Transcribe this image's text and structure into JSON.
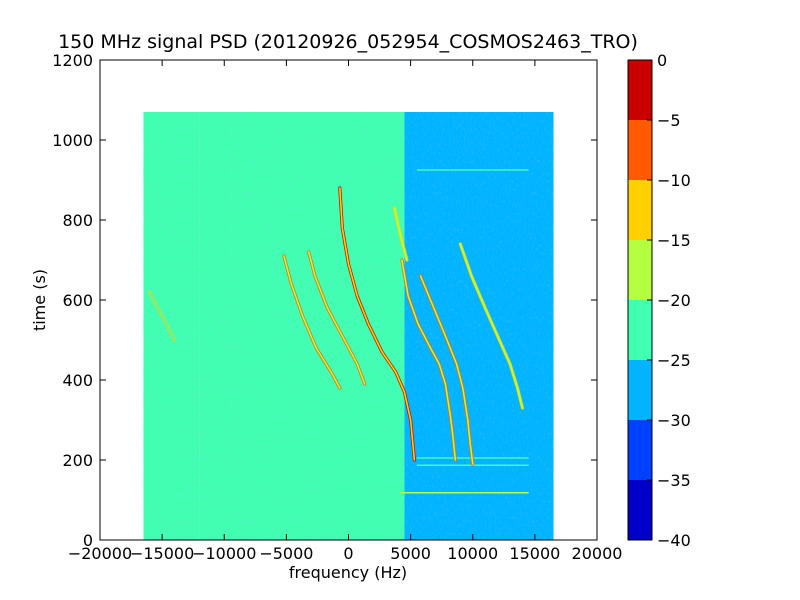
{
  "chart_data": {
    "type": "heatmap",
    "title": "150 MHz signal PSD (20120926_052954_COSMOS2463_TRO)",
    "xlabel": "frequency (Hz)",
    "ylabel": "time (s)",
    "xlim": [
      -20000,
      20000
    ],
    "ylim": [
      0,
      1200
    ],
    "xticks": [
      -20000,
      -15000,
      -10000,
      -5000,
      0,
      5000,
      10000,
      15000,
      20000
    ],
    "yticks": [
      0,
      200,
      400,
      600,
      800,
      1000,
      1200
    ],
    "data_extent": {
      "x": [
        -16500,
        16500
      ],
      "y": [
        0,
        1070
      ]
    },
    "background_regions": [
      {
        "x": [
          -16500,
          -12000
        ],
        "level": -25
      },
      {
        "x": [
          -12000,
          -9500
        ],
        "level": -25
      },
      {
        "x": [
          -9500,
          4500
        ],
        "level": -22.5
      },
      {
        "x": [
          4500,
          16500
        ],
        "level": -27.5
      }
    ],
    "signal_traces": [
      {
        "level": -12,
        "points": [
          [
            -700,
            880
          ],
          [
            -500,
            780
          ],
          [
            0,
            690
          ],
          [
            700,
            610
          ],
          [
            1600,
            540
          ],
          [
            2700,
            470
          ],
          [
            3800,
            420
          ],
          [
            4500,
            370
          ],
          [
            5000,
            300
          ],
          [
            5300,
            200
          ]
        ]
      },
      {
        "level": -18,
        "points": [
          [
            -5200,
            710
          ],
          [
            -4600,
            640
          ],
          [
            -3700,
            560
          ],
          [
            -2600,
            480
          ],
          [
            -1400,
            420
          ],
          [
            -700,
            380
          ]
        ]
      },
      {
        "level": -18,
        "points": [
          [
            -3200,
            720
          ],
          [
            -2700,
            660
          ],
          [
            -1700,
            580
          ],
          [
            -500,
            510
          ],
          [
            700,
            440
          ],
          [
            1300,
            390
          ]
        ]
      },
      {
        "level": -16,
        "points": [
          [
            4300,
            700
          ],
          [
            4800,
            610
          ],
          [
            5600,
            540
          ],
          [
            6600,
            480
          ],
          [
            7300,
            440
          ],
          [
            7800,
            390
          ],
          [
            8200,
            310
          ],
          [
            8400,
            260
          ],
          [
            8600,
            200
          ]
        ]
      },
      {
        "level": -18,
        "points": [
          [
            5800,
            660
          ],
          [
            6600,
            600
          ],
          [
            7800,
            510
          ],
          [
            8700,
            440
          ],
          [
            9200,
            380
          ],
          [
            9600,
            300
          ],
          [
            9800,
            240
          ],
          [
            10000,
            190
          ]
        ]
      },
      {
        "level": -20,
        "points": [
          [
            9000,
            740
          ],
          [
            9900,
            660
          ],
          [
            11000,
            580
          ],
          [
            12000,
            510
          ],
          [
            13000,
            440
          ],
          [
            13600,
            380
          ],
          [
            14000,
            330
          ]
        ]
      },
      {
        "level": -20,
        "points": [
          [
            3700,
            830
          ],
          [
            4200,
            760
          ],
          [
            4700,
            700
          ]
        ]
      },
      {
        "level": -21,
        "points": [
          [
            -16000,
            620
          ],
          [
            -15000,
            560
          ],
          [
            -14000,
            500
          ]
        ]
      }
    ],
    "horizontal_lines": [
      {
        "y": 925,
        "x": [
          5500,
          14500
        ],
        "level": -22
      },
      {
        "y": 205,
        "x": [
          5500,
          14500
        ],
        "level": -22
      },
      {
        "y": 187,
        "x": [
          5500,
          14500
        ],
        "level": -22
      },
      {
        "y": 118,
        "x": [
          4200,
          14500
        ],
        "level": -20
      }
    ],
    "colorbar": {
      "levels": [
        -40,
        -35,
        -30,
        -25,
        -20,
        -15,
        -10,
        -5,
        0
      ],
      "colors": [
        "#0000c8",
        "#0040ff",
        "#00b4ff",
        "#40ffb0",
        "#b4ff40",
        "#ffd000",
        "#ff5a00",
        "#c80000"
      ],
      "tick_labels": [
        "0",
        "−5",
        "−10",
        "−15",
        "−20",
        "−25",
        "−30",
        "−35",
        "−40"
      ]
    }
  },
  "xtick_labels": [
    "−20000",
    "−15000",
    "−10000",
    "−5000",
    "0",
    "5000",
    "10000",
    "15000",
    "20000"
  ],
  "ytick_labels": [
    "0",
    "200",
    "400",
    "600",
    "800",
    "1000",
    "1200"
  ]
}
